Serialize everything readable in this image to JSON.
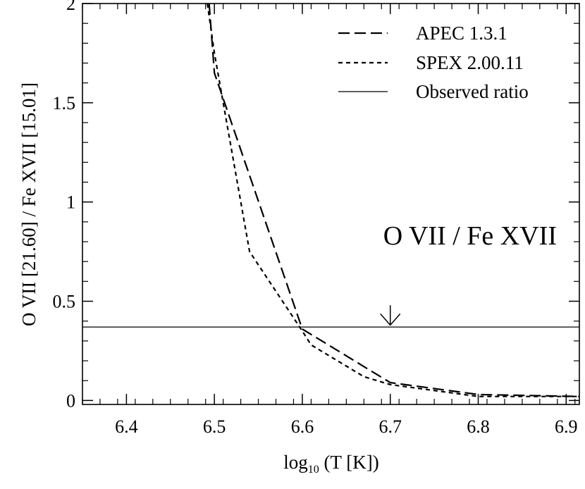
{
  "chart_data": {
    "type": "line",
    "title": "",
    "annotation": "O VII / Fe XVII",
    "xlabel_main": "log",
    "xlabel_sub": "10",
    "xlabel_rest": " (T [K])",
    "ylabel": "O VII [21.60] / Fe XVII [15.01]",
    "xlim": [
      6.35,
      6.915
    ],
    "ylim": [
      -0.02,
      2.0
    ],
    "x_ticks": [
      6.4,
      6.5,
      6.6,
      6.7,
      6.8,
      6.9
    ],
    "x_tick_labels": [
      "6.4",
      "6.5",
      "6.6",
      "6.7",
      "6.8",
      "6.9"
    ],
    "y_ticks": [
      0,
      0.5,
      1,
      1.5,
      2
    ],
    "y_tick_labels": [
      "0",
      "0.5",
      "1",
      "1.5",
      "2"
    ],
    "legend_position": "top-right",
    "series": [
      {
        "name": "APEC 1.3.1",
        "style": "long-dash",
        "x": [
          6.494,
          6.5,
          6.6,
          6.7,
          6.8,
          6.915
        ],
        "y": [
          2.0,
          1.65,
          0.36,
          0.09,
          0.03,
          0.02
        ]
      },
      {
        "name": "SPEX 2.00.11",
        "style": "short-dash",
        "x": [
          6.492,
          6.5,
          6.54,
          6.6,
          6.61,
          6.67,
          6.7,
          6.8,
          6.915
        ],
        "y": [
          2.0,
          1.75,
          0.75,
          0.35,
          0.28,
          0.12,
          0.08,
          0.02,
          0.02
        ]
      },
      {
        "name": "Observed ratio",
        "style": "solid",
        "x": [
          6.35,
          6.915
        ],
        "y": [
          0.37,
          0.37
        ]
      }
    ],
    "marker": {
      "type": "down-arrow",
      "x": 6.7,
      "y_top": 0.48,
      "y_bottom": 0.38
    }
  }
}
